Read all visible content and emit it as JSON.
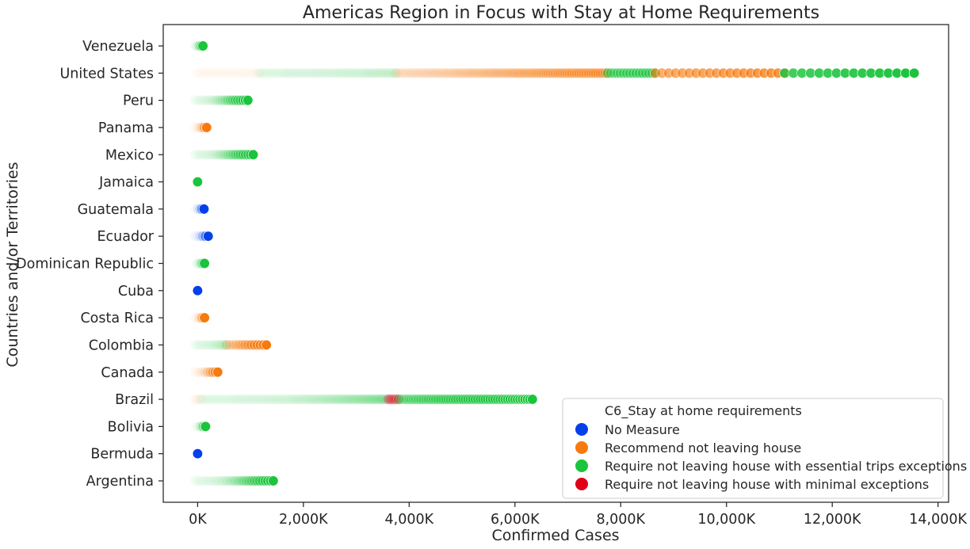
{
  "chart_data": {
    "type": "scatter",
    "title": "Americas Region in Focus with Stay at Home Requirements",
    "xlabel": "Confirmed Cases",
    "ylabel": "Countries and/or Territories",
    "xlim": [
      -650000,
      14200000
    ],
    "xticks": [
      {
        "value": 0,
        "label": "0K"
      },
      {
        "value": 2000000,
        "label": "2,000K"
      },
      {
        "value": 4000000,
        "label": "4,000K"
      },
      {
        "value": 6000000,
        "label": "6,000K"
      },
      {
        "value": 8000000,
        "label": "8,000K"
      },
      {
        "value": 10000000,
        "label": "10,000K"
      },
      {
        "value": 12000000,
        "label": "12,000K"
      },
      {
        "value": 14000000,
        "label": "14,000K"
      }
    ],
    "categories": [
      "Venezuela",
      "United States",
      "Peru",
      "Panama",
      "Mexico",
      "Jamaica",
      "Guatemala",
      "Ecuador",
      "Dominican Republic",
      "Cuba",
      "Costa Rica",
      "Colombia",
      "Canada",
      "Brazil",
      "Bolivia",
      "Bermuda",
      "Argentina"
    ],
    "legend": {
      "title": "C6_Stay at home requirements",
      "position": "lower right",
      "entries": [
        {
          "label": "No Measure",
          "color": "#0340ea"
        },
        {
          "label": "Recommend not leaving house",
          "color": "#f67a0e"
        },
        {
          "label": "Require not leaving house with essential trips exceptions",
          "color": "#1ac43c"
        },
        {
          "label": "Require not leaving house with minimal exceptions",
          "color": "#e0001a"
        }
      ]
    },
    "segments": [
      {
        "country": "Venezuela",
        "category": 2,
        "x0": -50000,
        "x1": 100000,
        "n": 6
      },
      {
        "country": "United States",
        "category": 1,
        "x0": 0,
        "x1": 1150000,
        "n": 14
      },
      {
        "country": "United States",
        "category": 2,
        "x0": 1150000,
        "x1": 3750000,
        "n": 60
      },
      {
        "country": "United States",
        "category": 1,
        "x0": 3750000,
        "x1": 7750000,
        "n": 90
      },
      {
        "country": "United States",
        "category": 2,
        "x0": 7750000,
        "x1": 8650000,
        "n": 16
      },
      {
        "country": "United States",
        "category": 1,
        "x0": 8650000,
        "x1": 11100000,
        "n": 20
      },
      {
        "country": "United States",
        "category": 2,
        "x0": 11100000,
        "x1": 13550000,
        "n": 16
      },
      {
        "country": "Peru",
        "category": 2,
        "x0": -50000,
        "x1": 950000,
        "n": 22
      },
      {
        "country": "Panama",
        "category": 1,
        "x0": -50000,
        "x1": 170000,
        "n": 6
      },
      {
        "country": "Mexico",
        "category": 2,
        "x0": -50000,
        "x1": 1050000,
        "n": 24
      },
      {
        "country": "Jamaica",
        "category": 2,
        "x0": 0,
        "x1": 0,
        "n": 1
      },
      {
        "country": "Guatemala",
        "category": 0,
        "x0": -30000,
        "x1": 120000,
        "n": 5
      },
      {
        "country": "Ecuador",
        "category": 0,
        "x0": -50000,
        "x1": 200000,
        "n": 6
      },
      {
        "country": "Dominican Republic",
        "category": 2,
        "x0": -30000,
        "x1": 130000,
        "n": 5
      },
      {
        "country": "Cuba",
        "category": 0,
        "x0": 0,
        "x1": 0,
        "n": 1
      },
      {
        "country": "Costa Rica",
        "category": 1,
        "x0": -50000,
        "x1": 130000,
        "n": 5
      },
      {
        "country": "Colombia",
        "category": 2,
        "x0": -50000,
        "x1": 550000,
        "n": 14
      },
      {
        "country": "Colombia",
        "category": 1,
        "x0": 550000,
        "x1": 1300000,
        "n": 14
      },
      {
        "country": "Canada",
        "category": 1,
        "x0": -50000,
        "x1": 380000,
        "n": 10
      },
      {
        "country": "Brazil",
        "category": 1,
        "x0": -50000,
        "x1": 50000,
        "n": 3
      },
      {
        "country": "Brazil",
        "category": 2,
        "x0": 50000,
        "x1": 3600000,
        "n": 80
      },
      {
        "country": "Brazil",
        "category": 3,
        "x0": 3600000,
        "x1": 3800000,
        "n": 8
      },
      {
        "country": "Brazil",
        "category": 2,
        "x0": 3800000,
        "x1": 6330000,
        "n": 55
      },
      {
        "country": "Bolivia",
        "category": 2,
        "x0": -30000,
        "x1": 150000,
        "n": 5
      },
      {
        "country": "Bermuda",
        "category": 0,
        "x0": 0,
        "x1": 0,
        "n": 1
      },
      {
        "country": "Argentina",
        "category": 2,
        "x0": -50000,
        "x1": 1430000,
        "n": 30
      }
    ]
  }
}
